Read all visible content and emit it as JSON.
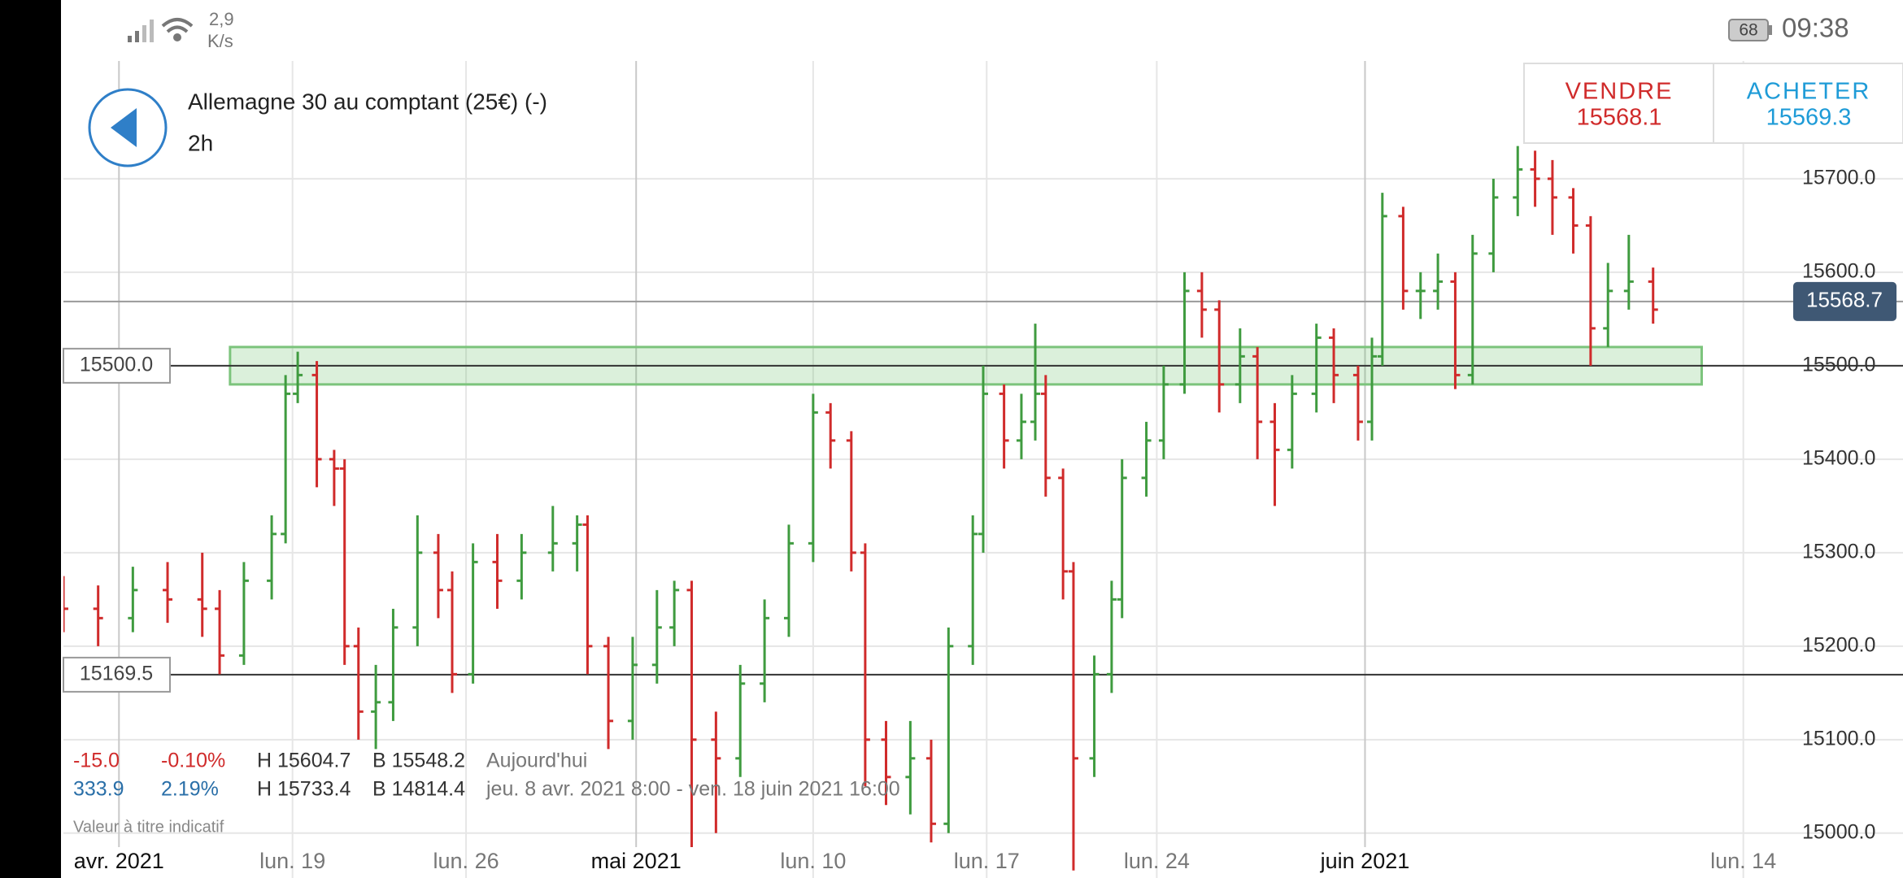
{
  "status_bar": {
    "speed_value": "2,9",
    "speed_unit": "K/s",
    "battery": "68",
    "time": "09:38"
  },
  "header": {
    "title": "Allemagne 30 au comptant (25€) (-)",
    "timeframe": "2h"
  },
  "trade": {
    "sell_label": "VENDRE",
    "sell_price": "15568.1",
    "buy_label": "ACHETER",
    "buy_price": "15569.3"
  },
  "chart_data": {
    "type": "ohlc",
    "x": [
      0,
      1,
      2,
      3,
      4,
      4.5,
      5.2,
      6,
      6.4,
      6.75,
      7.3,
      7.8,
      8.1,
      8.5,
      9,
      9.5,
      10.2,
      10.8,
      11.2,
      11.8,
      12.5,
      13.2,
      14.1,
      14.8,
      15.1,
      15.7,
      16.4,
      17.1,
      17.6,
      18.1,
      18.8,
      19.5,
      20.2,
      20.9,
      21.6,
      22.1,
      22.7,
      23.1,
      23.7,
      24.4,
      25,
      25.5,
      26.2,
      26.5,
      27.1,
      27.6,
      28,
      28.3,
      28.8,
      29.1,
      29.7,
      30.2,
      30.5,
      31.2,
      31.7,
      32.3,
      32.8,
      33.3,
      33.9,
      34.4,
      34.9,
      35.4,
      36.1,
      36.6,
      37.3,
      37.7,
      38,
      38.6,
      39.1,
      39.6,
      40.1,
      40.6,
      41.2,
      41.9,
      42.4,
      42.9,
      43.5,
      44,
      44.5,
      45.1,
      45.8
    ],
    "open": [
      15250,
      15240,
      15230,
      15260,
      15250,
      15240,
      15190,
      15270,
      15320,
      15470,
      15490,
      15400,
      15390,
      15200,
      15130,
      15140,
      15220,
      15300,
      15260,
      15170,
      15290,
      15270,
      15300,
      15310,
      15330,
      15200,
      15120,
      15180,
      15220,
      15260,
      15100,
      15080,
      15160,
      15230,
      15310,
      15450,
      15420,
      15300,
      15100,
      15060,
      15080,
      15010,
      15200,
      15320,
      15470,
      15420,
      15440,
      15470,
      15380,
      15280,
      15080,
      15170,
      15250,
      15380,
      15420,
      15480,
      15580,
      15560,
      15480,
      15510,
      15440,
      15410,
      15470,
      15530,
      15490,
      15440,
      15510,
      15660,
      15580,
      15580,
      15590,
      15490,
      15620,
      15680,
      15710,
      15700,
      15680,
      15650,
      15540,
      15580,
      15590
    ],
    "high": [
      15275,
      15265,
      15285,
      15290,
      15300,
      15260,
      15290,
      15340,
      15490,
      15515,
      15505,
      15410,
      15400,
      15220,
      15180,
      15240,
      15340,
      15320,
      15280,
      15310,
      15320,
      15320,
      15350,
      15340,
      15340,
      15210,
      15210,
      15260,
      15270,
      15270,
      15130,
      15180,
      15250,
      15330,
      15470,
      15460,
      15430,
      15310,
      15120,
      15120,
      15100,
      15220,
      15340,
      15500,
      15480,
      15470,
      15545,
      15490,
      15390,
      15290,
      15190,
      15270,
      15400,
      15440,
      15500,
      15600,
      15600,
      15570,
      15540,
      15520,
      15460,
      15490,
      15545,
      15540,
      15500,
      15530,
      15685,
      15670,
      15600,
      15620,
      15600,
      15640,
      15700,
      15735,
      15730,
      15720,
      15690,
      15660,
      15610,
      15640,
      15605
    ],
    "low": [
      15215,
      15200,
      15215,
      15225,
      15210,
      15170,
      15180,
      15250,
      15310,
      15460,
      15370,
      15350,
      15180,
      15100,
      15090,
      15120,
      15200,
      15230,
      15150,
      15160,
      15240,
      15250,
      15280,
      15280,
      15170,
      15090,
      15100,
      15160,
      15200,
      14950,
      15000,
      15060,
      15140,
      15210,
      15290,
      15390,
      15280,
      15050,
      15030,
      15020,
      14990,
      15000,
      15180,
      15300,
      15390,
      15400,
      15420,
      15360,
      15250,
      14960,
      15060,
      15150,
      15230,
      15360,
      15400,
      15470,
      15530,
      15450,
      15460,
      15400,
      15350,
      15390,
      15450,
      15460,
      15420,
      15420,
      15500,
      15560,
      15550,
      15560,
      15475,
      15480,
      15600,
      15660,
      15670,
      15640,
      15620,
      15500,
      15520,
      15560,
      15545
    ],
    "close": [
      15240,
      15230,
      15260,
      15250,
      15240,
      15190,
      15270,
      15320,
      15470,
      15490,
      15400,
      15390,
      15200,
      15130,
      15140,
      15220,
      15300,
      15260,
      15170,
      15290,
      15270,
      15300,
      15310,
      15330,
      15200,
      15120,
      15180,
      15220,
      15260,
      15100,
      15080,
      15160,
      15230,
      15310,
      15450,
      15420,
      15300,
      15100,
      15060,
      15080,
      15010,
      15200,
      15320,
      15470,
      15420,
      15440,
      15470,
      15380,
      15280,
      15080,
      15170,
      15250,
      15380,
      15420,
      15480,
      15580,
      15560,
      15480,
      15510,
      15440,
      15410,
      15470,
      15530,
      15490,
      15440,
      15510,
      15660,
      15580,
      15580,
      15590,
      15490,
      15620,
      15680,
      15710,
      15700,
      15680,
      15650,
      15540,
      15580,
      15590,
      15560
    ],
    "up_color": "#3f9b3f",
    "down_color": "#d02b2b",
    "xlim": [
      0,
      53
    ],
    "xticks": [
      {
        "value": 1.6,
        "label": "avr. 2021"
      },
      {
        "value": 6.6,
        "label": "lun. 19"
      },
      {
        "value": 11.6,
        "label": "lun. 26"
      },
      {
        "value": 16.5,
        "label": "mai 2021"
      },
      {
        "value": 21.6,
        "label": "lun. 10"
      },
      {
        "value": 26.6,
        "label": "lun. 17"
      },
      {
        "value": 31.5,
        "label": "lun. 24"
      },
      {
        "value": 37.5,
        "label": "juin 2021"
      },
      {
        "value": 48.4,
        "label": "lun. 14"
      }
    ],
    "ylim": [
      14952,
      15826
    ],
    "yticks": [
      {
        "value": 15000,
        "label": "15000.0"
      },
      {
        "value": 15100,
        "label": "15100.0"
      },
      {
        "value": 15200,
        "label": "15200.0"
      },
      {
        "value": 15300,
        "label": "15300.0"
      },
      {
        "value": 15400,
        "label": "15400.0"
      },
      {
        "value": 15500,
        "label": "15500.0"
      },
      {
        "value": 15600,
        "label": "15600.0"
      },
      {
        "value": 15700,
        "label": "15700.0"
      }
    ],
    "grid": true,
    "last_price": 15568.7,
    "levels": [
      {
        "value": 15500,
        "label": "15500.0"
      },
      15169.5
    ],
    "zone": {
      "x": [
        4.8,
        47.2
      ],
      "y": [
        15480,
        15520
      ]
    }
  },
  "stats": {
    "rows": [
      [
        "-15.0",
        "-0.10%",
        "H 15604.7",
        "B 15548.2",
        "Aujourd'hui"
      ],
      [
        "333.9",
        "2.19%",
        "H 15733.4",
        "B 14814.4",
        "jeu. 8 avr. 2021 8:00 - ven. 18 juin 2021 16:00"
      ]
    ],
    "note": "Valeur à titre indicatif"
  }
}
